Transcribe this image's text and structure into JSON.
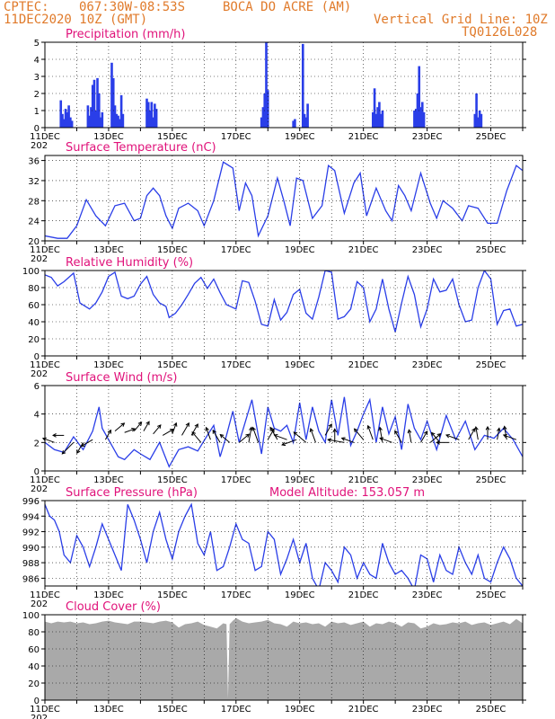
{
  "header": {
    "source": "CPTEC:",
    "coords": "067:30W-08:53S",
    "location": "BOCA DO ACRE (AM)",
    "run": "11DEC2020 10Z (GMT)",
    "grid_note": "Vertical Grid Line: 10Z",
    "code": "TQ0126L028",
    "color": "#e07a2a"
  },
  "colors": {
    "title": "#e0127a",
    "line": "#2a3ee8",
    "bar": "#2a3ee8",
    "cloud": "#a9a9a9",
    "arrow": "#000000"
  },
  "x_ticks": [
    "11DEC",
    "13DEC",
    "15DEC",
    "17DEC",
    "19DEC",
    "21DEC",
    "23DEC",
    "25DEC"
  ],
  "year_label": "202",
  "chart_data": [
    {
      "id": "precip",
      "type": "bar",
      "title": "Precipitation (mm/h)",
      "xlabel": "",
      "ylabel": "",
      "ylim": [
        0,
        5
      ],
      "yticks": [
        0,
        1,
        2,
        3,
        4,
        5
      ],
      "x_days": [
        0,
        15
      ],
      "x": [
        0.5,
        0.55,
        0.6,
        0.65,
        0.7,
        0.75,
        0.8,
        0.85,
        1.35,
        1.4,
        1.45,
        1.5,
        1.55,
        1.6,
        1.65,
        1.7,
        1.75,
        1.8,
        2.1,
        2.15,
        2.2,
        2.25,
        2.3,
        2.35,
        2.4,
        2.45,
        3.2,
        3.25,
        3.3,
        3.35,
        3.4,
        3.45,
        3.5,
        6.8,
        6.85,
        6.9,
        6.95,
        7.0,
        7.8,
        7.85,
        8.1,
        8.15,
        8.2,
        8.25,
        10.3,
        10.35,
        10.4,
        10.45,
        10.5,
        10.55,
        10.6,
        11.6,
        11.65,
        11.7,
        11.75,
        11.8,
        11.85,
        11.9,
        13.5,
        13.55,
        13.6,
        13.65,
        13.7
      ],
      "values": [
        1.6,
        0.8,
        0.5,
        1.1,
        0.9,
        1.3,
        0.6,
        0.4,
        1.3,
        0.7,
        1.2,
        2.5,
        2.8,
        1.0,
        2.9,
        2.0,
        0.6,
        0.9,
        3.8,
        2.9,
        1.3,
        0.8,
        0.7,
        0.5,
        1.9,
        0.8,
        1.7,
        1.5,
        1.0,
        1.5,
        0.6,
        1.4,
        1.1,
        0.6,
        1.2,
        2.0,
        5.0,
        2.2,
        0.4,
        0.5,
        4.9,
        0.8,
        0.6,
        1.4,
        0.9,
        2.3,
        0.8,
        1.2,
        1.5,
        0.8,
        1.0,
        1.0,
        1.1,
        2.0,
        3.6,
        1.2,
        1.5,
        0.9,
        0.8,
        2.0,
        0.6,
        1.0,
        0.8
      ]
    },
    {
      "id": "temp",
      "type": "line",
      "title": "Surface Temperature (nC)",
      "xlabel": "",
      "ylabel": "",
      "ylim": [
        20,
        37
      ],
      "yticks": [
        20,
        24,
        28,
        32,
        36
      ],
      "x_days": [
        0,
        15
      ],
      "x": [
        0,
        0.4,
        0.7,
        1.0,
        1.3,
        1.6,
        1.9,
        2.2,
        2.5,
        2.8,
        3.0,
        3.2,
        3.4,
        3.6,
        3.8,
        4.0,
        4.2,
        4.5,
        4.8,
        5.0,
        5.3,
        5.6,
        5.9,
        6.1,
        6.3,
        6.5,
        6.7,
        7.0,
        7.3,
        7.5,
        7.7,
        7.9,
        8.1,
        8.4,
        8.7,
        8.9,
        9.1,
        9.4,
        9.7,
        9.9,
        10.1,
        10.4,
        10.7,
        10.9,
        11.1,
        11.3,
        11.5,
        11.8,
        12.1,
        12.3,
        12.5,
        12.8,
        13.1,
        13.3,
        13.6,
        13.9,
        14.2,
        14.5,
        14.8,
        15.0
      ],
      "values": [
        21,
        20.5,
        20.5,
        23,
        28.2,
        25,
        23,
        27,
        27.5,
        24,
        24.5,
        29,
        30.5,
        29,
        25,
        22.5,
        26.5,
        27.5,
        26,
        23,
        28,
        35.7,
        34.5,
        26,
        31.5,
        29,
        21,
        25,
        32.5,
        28,
        23,
        32.5,
        32,
        24.5,
        27,
        35,
        34,
        25.5,
        31.5,
        33.5,
        25,
        30.5,
        26,
        24,
        31,
        29,
        26,
        33.5,
        27.5,
        24.5,
        28,
        26.5,
        24,
        27,
        26.5,
        23.5,
        23.5,
        30,
        35,
        34
      ]
    },
    {
      "id": "rh",
      "type": "line",
      "title": "Relative Humidity (%)",
      "xlabel": "",
      "ylabel": "",
      "ylim": [
        0,
        100
      ],
      "yticks": [
        0,
        20,
        40,
        60,
        80,
        100
      ],
      "x_days": [
        0,
        15
      ],
      "x": [
        0,
        0.2,
        0.4,
        0.6,
        0.9,
        1.1,
        1.4,
        1.6,
        1.8,
        2.0,
        2.2,
        2.4,
        2.6,
        2.8,
        3.0,
        3.2,
        3.4,
        3.6,
        3.8,
        3.9,
        4.1,
        4.3,
        4.5,
        4.7,
        4.9,
        5.1,
        5.3,
        5.5,
        5.7,
        6.0,
        6.2,
        6.4,
        6.6,
        6.8,
        7.0,
        7.2,
        7.4,
        7.6,
        7.8,
        8.0,
        8.2,
        8.4,
        8.6,
        8.8,
        9.0,
        9.2,
        9.4,
        9.6,
        9.8,
        10.0,
        10.2,
        10.4,
        10.6,
        10.8,
        11.0,
        11.2,
        11.4,
        11.6,
        11.8,
        12.0,
        12.2,
        12.4,
        12.6,
        12.8,
        13.0,
        13.2,
        13.4,
        13.6,
        13.8,
        14.0,
        14.2,
        14.4,
        14.6,
        14.8,
        15.0
      ],
      "values": [
        95,
        92,
        82,
        87,
        97,
        62,
        55,
        62,
        75,
        93,
        98,
        70,
        67,
        70,
        84,
        93,
        72,
        62,
        58,
        45,
        50,
        60,
        72,
        85,
        92,
        79,
        90,
        74,
        60,
        55,
        88,
        86,
        64,
        37,
        35,
        66,
        42,
        51,
        72,
        78,
        50,
        43,
        69,
        100,
        98,
        43,
        46,
        55,
        87,
        80,
        40,
        55,
        90,
        55,
        28,
        62,
        93,
        72,
        34,
        55,
        90,
        75,
        77,
        90,
        60,
        40,
        42,
        80,
        100,
        90,
        37,
        53,
        55,
        35,
        37
      ]
    },
    {
      "id": "wind",
      "type": "line",
      "title": "Surface Wind (m/s)",
      "xlabel": "",
      "ylabel": "",
      "ylim": [
        0,
        6
      ],
      "yticks": [
        0,
        2,
        4,
        6
      ],
      "x_days": [
        0,
        15
      ],
      "x": [
        0,
        0.3,
        0.6,
        0.9,
        1.2,
        1.5,
        1.7,
        1.8,
        2.0,
        2.3,
        2.5,
        2.8,
        3.0,
        3.3,
        3.6,
        3.9,
        4.2,
        4.5,
        4.8,
        5.1,
        5.3,
        5.5,
        5.7,
        5.9,
        6.1,
        6.3,
        6.5,
        6.8,
        7.0,
        7.2,
        7.4,
        7.6,
        7.8,
        8.0,
        8.2,
        8.4,
        8.6,
        8.8,
        9.0,
        9.2,
        9.4,
        9.6,
        9.8,
        10.0,
        10.2,
        10.4,
        10.6,
        10.8,
        11.0,
        11.2,
        11.4,
        11.6,
        11.8,
        12.0,
        12.3,
        12.6,
        12.9,
        13.2,
        13.5,
        13.8,
        14.1,
        14.4,
        14.7,
        15.0
      ],
      "values": [
        2.0,
        1.5,
        1.3,
        2.4,
        1.5,
        2.8,
        4.5,
        3.0,
        2.2,
        1.0,
        0.8,
        1.5,
        1.2,
        0.8,
        2.0,
        0.3,
        1.5,
        1.7,
        1.4,
        2.5,
        3.2,
        1.0,
        2.5,
        4.2,
        2.0,
        3.5,
        5.0,
        1.2,
        4.5,
        3.0,
        2.8,
        3.2,
        2.0,
        4.8,
        2.2,
        4.5,
        2.8,
        2.0,
        5.0,
        2.5,
        5.2,
        1.8,
        2.8,
        4.0,
        5.0,
        2.0,
        4.5,
        2.6,
        3.8,
        1.5,
        4.7,
        3.0,
        2.2,
        3.5,
        1.5,
        3.9,
        2.2,
        3.5,
        1.5,
        2.5,
        2.3,
        3.0,
        2.2,
        1.0
      ],
      "arrows": {
        "x": [
          0.3,
          0.6,
          0.9,
          1.2,
          1.5,
          1.9,
          2.2,
          2.5,
          2.8,
          3.1,
          3.4,
          3.7,
          4.0,
          4.3,
          4.6,
          4.9,
          5.2,
          5.5,
          5.8,
          6.1,
          6.4,
          6.7,
          7.0,
          7.3,
          7.6,
          7.9,
          8.2,
          8.5,
          8.8,
          9.1,
          9.4,
          9.7,
          10.0,
          10.3,
          10.6,
          10.9,
          11.2,
          11.5,
          11.8,
          12.1,
          12.4,
          12.7,
          13.0,
          13.3,
          13.6,
          13.9,
          14.2,
          14.5,
          14.8
        ],
        "y": [
          2.0,
          2.5,
          2.0,
          2.0,
          2.2,
          2.2,
          2.8,
          2.7,
          2.8,
          2.8,
          2.6,
          2.5,
          2.6,
          2.5,
          2.5,
          2.0,
          2.2,
          2.0,
          2.0,
          2.0,
          2.0,
          2.0,
          2.2,
          2.2,
          2.2,
          2.2,
          2.0,
          2.0,
          2.5,
          2.0,
          2.0,
          2.0,
          2.2,
          2.2,
          2.0,
          2.0,
          2.0,
          2.0,
          2.0,
          2.0,
          2.0,
          2.0,
          2.2,
          2.2,
          2.2,
          2.2,
          2.2,
          2.2,
          2.2
        ],
        "dir_deg": [
          200,
          180,
          135,
          120,
          150,
          300,
          320,
          340,
          310,
          300,
          310,
          330,
          290,
          300,
          300,
          230,
          250,
          240,
          220,
          320,
          280,
          250,
          300,
          240,
          200,
          160,
          220,
          250,
          300,
          270,
          190,
          200,
          230,
          250,
          260,
          200,
          240,
          260,
          300,
          320,
          230,
          180,
          200,
          300,
          260,
          270,
          280,
          260,
          200
        ],
        "length": [
          0.8,
          0.6,
          1.4,
          0.8,
          0.9,
          0.6,
          0.8,
          0.6,
          0.7,
          0.6,
          0.7,
          0.8,
          0.7,
          1.1,
          0.9,
          1.0,
          0.9,
          1.1,
          0.8,
          0.9,
          1.3,
          1.4,
          0.8,
          1.1,
          1.0,
          1.3,
          1.4,
          1.2,
          0.9,
          1.0,
          1.5,
          0.9,
          1.1,
          1.2,
          1.3,
          0.9,
          1.0,
          0.9,
          0.9,
          1.0,
          0.9,
          0.9,
          1.0,
          0.9,
          0.9,
          0.9,
          0.7,
          1.0,
          1.0
        ]
      }
    },
    {
      "id": "pres",
      "type": "line",
      "title": "Surface Pressure (hPa)",
      "note": "Model Altitude: 153.057 m",
      "xlabel": "",
      "ylabel": "",
      "ylim": [
        985,
        996
      ],
      "yticks": [
        986,
        988,
        990,
        992,
        994,
        996
      ],
      "x_days": [
        0,
        15
      ],
      "x": [
        0,
        0.15,
        0.3,
        0.45,
        0.6,
        0.8,
        1.0,
        1.2,
        1.4,
        1.6,
        1.8,
        2.0,
        2.2,
        2.4,
        2.6,
        2.8,
        3.0,
        3.2,
        3.4,
        3.6,
        3.8,
        4.0,
        4.2,
        4.4,
        4.6,
        4.8,
        5.0,
        5.2,
        5.4,
        5.6,
        5.8,
        6.0,
        6.2,
        6.4,
        6.6,
        6.8,
        7.0,
        7.2,
        7.4,
        7.6,
        7.8,
        8.0,
        8.2,
        8.4,
        8.6,
        8.8,
        9.0,
        9.2,
        9.4,
        9.6,
        9.8,
        10.0,
        10.2,
        10.4,
        10.6,
        10.8,
        11.0,
        11.2,
        11.4,
        11.6,
        11.8,
        12.0,
        12.2,
        12.4,
        12.6,
        12.8,
        13.0,
        13.2,
        13.4,
        13.6,
        13.8,
        14.0,
        14.2,
        14.4,
        14.6,
        14.8,
        15.0
      ],
      "values": [
        995.5,
        994,
        993.5,
        992,
        989,
        988,
        991.5,
        990,
        987.5,
        990,
        993,
        991,
        989,
        987,
        995.5,
        993.5,
        991,
        988,
        992,
        994.5,
        991,
        988.5,
        992,
        994,
        995.5,
        990.5,
        989,
        992,
        987,
        987.5,
        990,
        993,
        991,
        990.5,
        987,
        987.5,
        992,
        991,
        986.5,
        988.5,
        991,
        988,
        990.5,
        986,
        984.5,
        988,
        987,
        985.5,
        990,
        989,
        986,
        988,
        986.5,
        986,
        990.5,
        988,
        986.5,
        987,
        986,
        984.5,
        989,
        988.5,
        985.5,
        989,
        987,
        986.5,
        990,
        988,
        986.5,
        989,
        986,
        985.5,
        988,
        990,
        988.5,
        986,
        985
      ]
    },
    {
      "id": "cloud",
      "type": "area",
      "title": "Cloud Cover (%)",
      "xlabel": "",
      "ylabel": "",
      "ylim": [
        0,
        100
      ],
      "yticks": [
        0,
        20,
        40,
        60,
        80,
        100
      ],
      "x_days": [
        0,
        15
      ],
      "x": [
        0,
        0.2,
        0.4,
        0.6,
        0.8,
        1.0,
        1.2,
        1.4,
        1.6,
        1.8,
        2.0,
        2.2,
        2.4,
        2.6,
        2.8,
        3.0,
        3.2,
        3.4,
        3.6,
        3.8,
        4.0,
        4.2,
        4.4,
        4.6,
        4.8,
        5.0,
        5.2,
        5.4,
        5.6,
        5.7,
        5.75,
        5.8,
        5.9,
        6.0,
        6.2,
        6.4,
        6.6,
        6.8,
        7.0,
        7.2,
        7.4,
        7.6,
        7.8,
        8.0,
        8.2,
        8.4,
        8.6,
        8.8,
        9.0,
        9.2,
        9.4,
        9.6,
        9.8,
        10.0,
        10.2,
        10.4,
        10.6,
        10.8,
        11.0,
        11.2,
        11.4,
        11.6,
        11.8,
        12.0,
        12.2,
        12.4,
        12.6,
        12.8,
        13.0,
        13.2,
        13.4,
        13.6,
        13.8,
        14.0,
        14.2,
        14.4,
        14.6,
        14.8,
        15.0
      ],
      "values": [
        92,
        90,
        92,
        91,
        92,
        90,
        91,
        89,
        90,
        92,
        93,
        91,
        90,
        89,
        92,
        92,
        91,
        90,
        92,
        93,
        91,
        85,
        89,
        90,
        92,
        88,
        86,
        84,
        90,
        89,
        2,
        89,
        93,
        96,
        92,
        90,
        91,
        92,
        94,
        90,
        89,
        86,
        92,
        90,
        91,
        89,
        90,
        86,
        92,
        90,
        91,
        88,
        90,
        92,
        86,
        90,
        89,
        92,
        90,
        86,
        91,
        90,
        84,
        86,
        90,
        88,
        89,
        91,
        90,
        92,
        88,
        90,
        91,
        88,
        90,
        92,
        89,
        95,
        90
      ]
    }
  ]
}
